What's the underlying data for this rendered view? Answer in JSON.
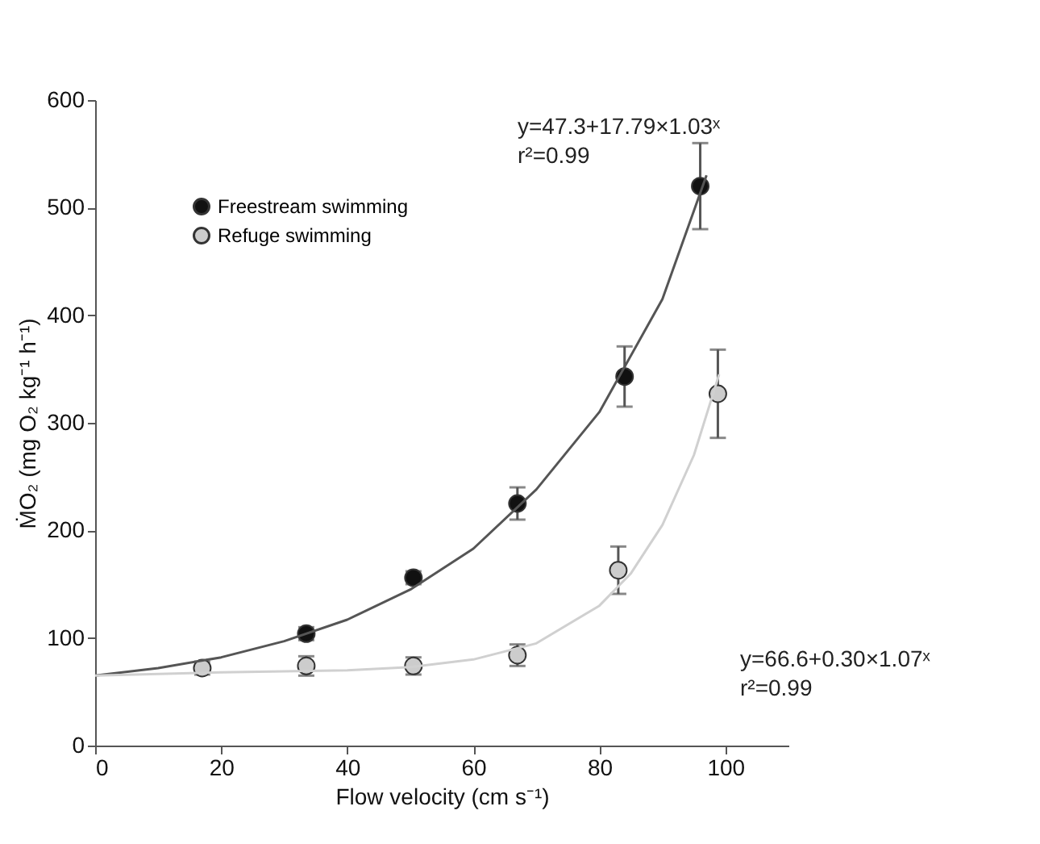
{
  "chart_data": {
    "type": "scatter",
    "xlabel": "Flow velocity (cm s⁻¹)",
    "ylabel": "ṀO₂ (mg O₂ kg⁻¹ h⁻¹)",
    "xlim": [
      0,
      110
    ],
    "xticks": [
      0,
      20,
      40,
      60,
      80,
      100
    ],
    "ylim": [
      0,
      600
    ],
    "yticks": [
      0,
      100,
      200,
      300,
      400,
      500,
      600
    ],
    "grid": false,
    "legend": "top left",
    "series": [
      {
        "name": "Freestream swimming",
        "type": "scatter",
        "marker": "circle",
        "color": "#111111",
        "x": [
          33.5,
          50.5,
          67,
          84,
          96
        ],
        "values": [
          104,
          156,
          225,
          343,
          520
        ],
        "errors": [
          6,
          6,
          15,
          28,
          40
        ]
      },
      {
        "name": "Refuge swimming",
        "type": "scatter",
        "marker": "circle",
        "color": "#cccccc",
        "x": [
          17,
          33.5,
          50.5,
          67,
          83,
          98.8
        ],
        "values": [
          72,
          74,
          74,
          84,
          163,
          327
        ],
        "errors": [
          6,
          9,
          8,
          10,
          22,
          41
        ]
      },
      {
        "type": "line",
        "marker": "none",
        "color": "#555555",
        "x": [
          0,
          10,
          20,
          30,
          40,
          50,
          60,
          70,
          80,
          90,
          97
        ],
        "values": [
          65,
          72,
          82,
          97,
          117,
          145,
          183,
          238,
          310,
          415,
          530
        ]
      },
      {
        "type": "line",
        "marker": "none",
        "color": "#d0d0d0",
        "x": [
          0,
          20,
          40,
          50,
          60,
          70,
          80,
          85,
          90,
          95,
          99
        ],
        "values": [
          65,
          68,
          70,
          73,
          80,
          95,
          130,
          160,
          205,
          270,
          345
        ]
      }
    ],
    "annotations": [
      "y=47.3+17.79×1.03ˣ\nr²=0.99",
      "y=66.6+0.30×1.07ˣ\nr²=0.99"
    ]
  }
}
